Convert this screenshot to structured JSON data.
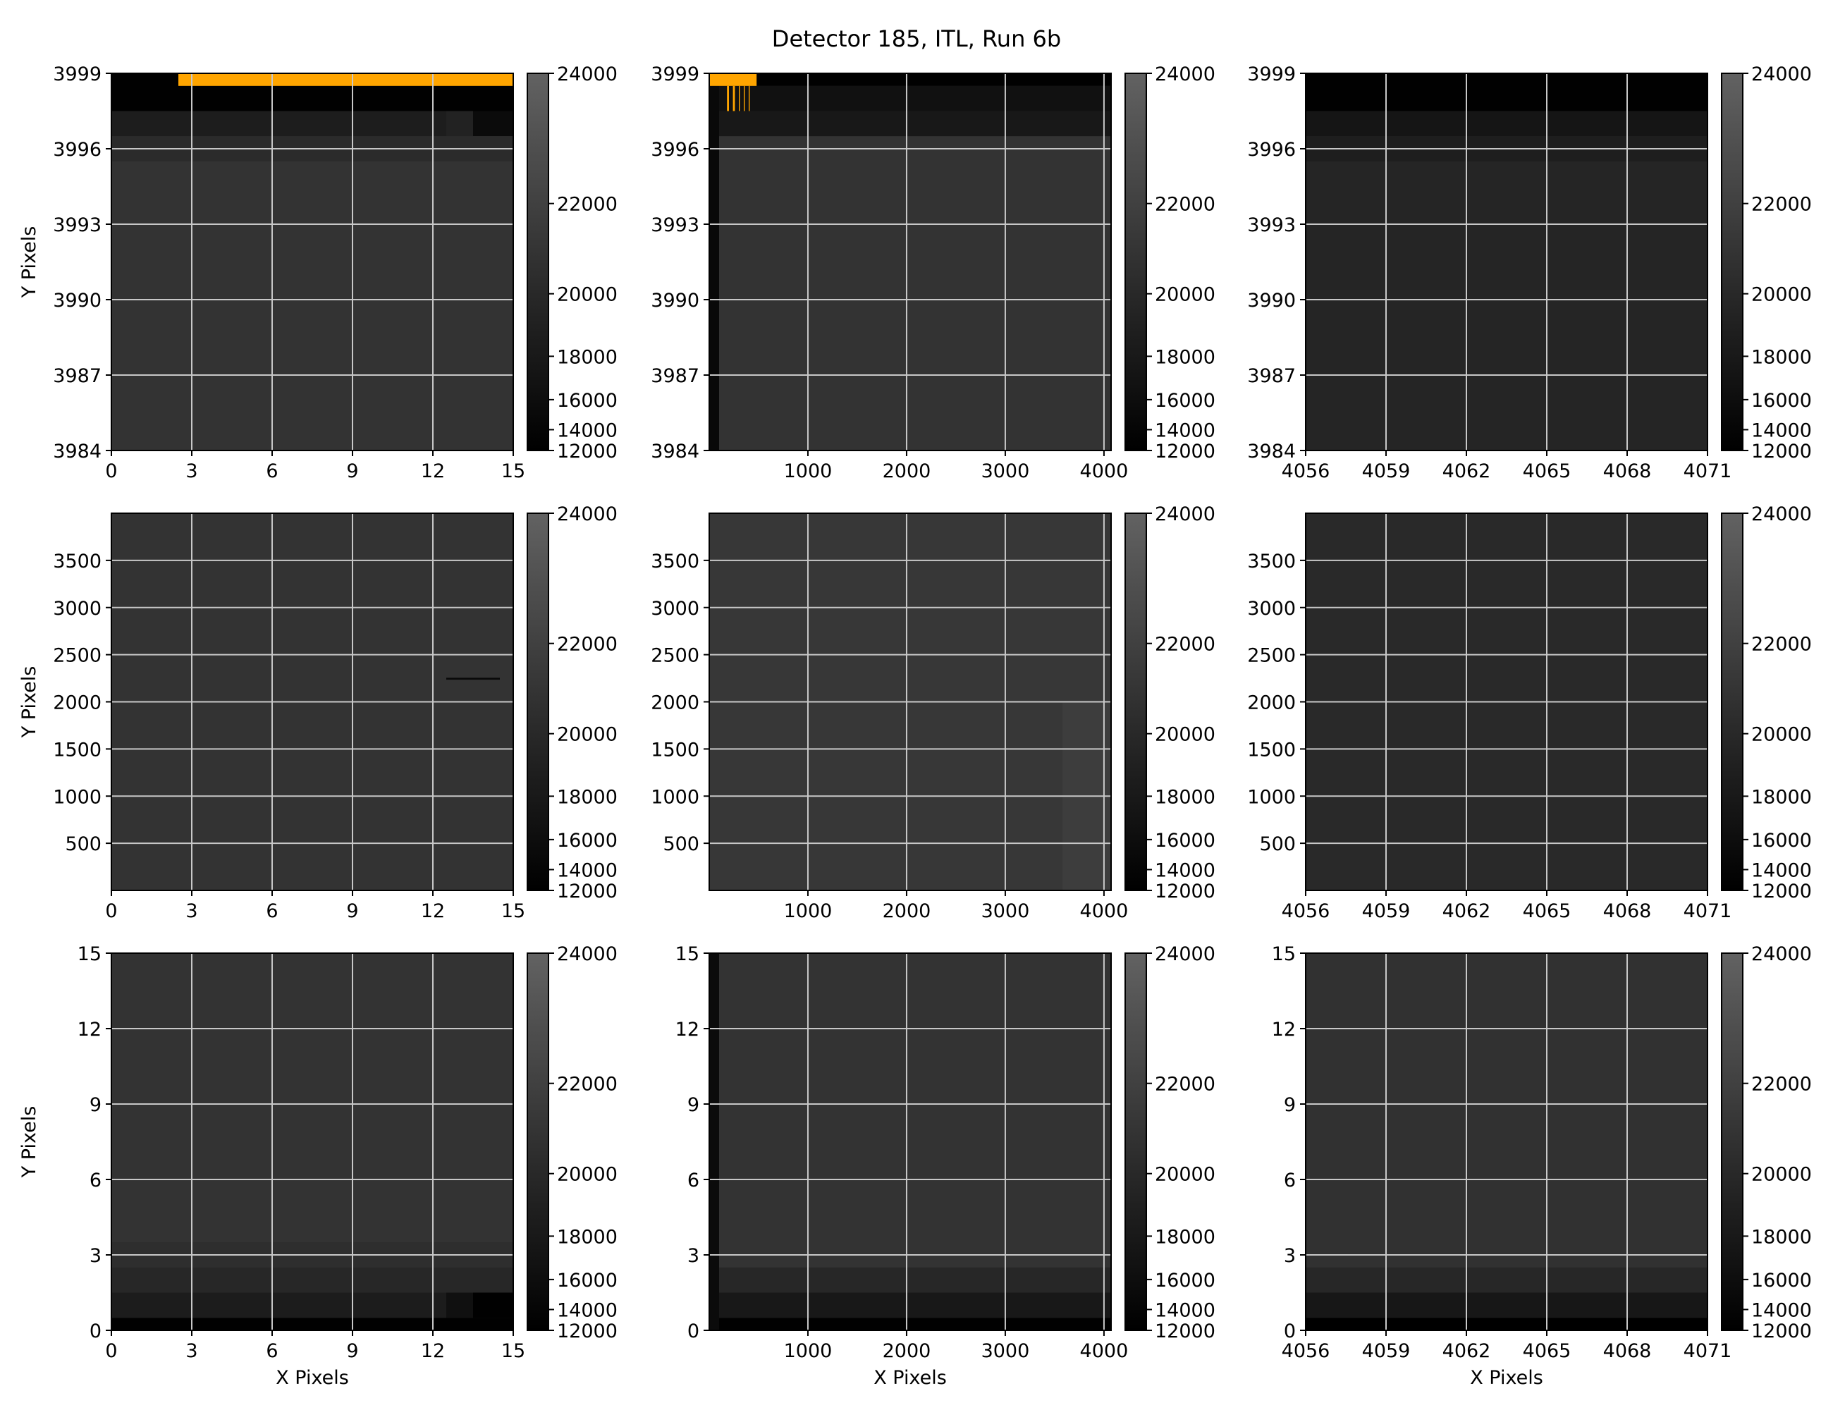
{
  "figure": {
    "title": "Detector 185, ITL, Run 6b",
    "xlabel": "X Pixels",
    "ylabel": "Y Pixels"
  },
  "colors": {
    "background": "#ffffff",
    "masked_pixels": "#ffa500",
    "grid": "#c8c8c8",
    "axes": "#000000",
    "colormap": "gray"
  },
  "chart_data": [
    {
      "type": "heatmap",
      "panel": "top-left",
      "xlabel": "",
      "ylabel": "Y Pixels",
      "xlim": [
        0,
        15
      ],
      "ylim": [
        3984,
        3999
      ],
      "xticks": [
        0,
        3,
        6,
        9,
        12,
        15
      ],
      "yticks": [
        3984,
        3987,
        3990,
        3993,
        3996,
        3999
      ],
      "xtick_labels": [
        "0",
        "3",
        "6",
        "9",
        "12",
        "15"
      ],
      "ytick_labels": [
        "3984",
        "3987",
        "3990",
        "3993",
        "3996",
        "3999"
      ],
      "background_value": 21000,
      "regions": [
        {
          "x": [
            0,
            15
          ],
          "y": [
            3997.5,
            3999
          ],
          "value": 12500
        },
        {
          "x": [
            0,
            12.5
          ],
          "y": [
            3996.5,
            3997.5
          ],
          "value": 18600
        },
        {
          "x": [
            12.5,
            13.5
          ],
          "y": [
            3996.5,
            3997.5
          ],
          "value": 19200
        },
        {
          "x": [
            13.5,
            15
          ],
          "y": [
            3996.5,
            3997.5
          ],
          "value": 15500
        },
        {
          "x": [
            0,
            15
          ],
          "y": [
            3995.5,
            3996.5
          ],
          "value": 20200
        }
      ],
      "masked": [
        {
          "x": [
            2.5,
            15
          ],
          "y": [
            3998.5,
            3999
          ]
        }
      ],
      "colorbar": {
        "min": 12000,
        "max": 24000,
        "ticks": [
          12000,
          14000,
          16000,
          18000,
          20000,
          22000,
          24000
        ],
        "tick_labels": [
          "12000",
          "14000",
          "16000",
          "18000",
          "20000",
          "22000",
          "24000"
        ],
        "scale": "non-linear"
      }
    },
    {
      "type": "heatmap",
      "panel": "top-center",
      "xlabel": "",
      "ylabel": "",
      "xlim": [
        0,
        4072
      ],
      "ylim": [
        3984,
        3999
      ],
      "xticks": [
        1000,
        2000,
        3000,
        4000
      ],
      "yticks": [
        3984,
        3987,
        3990,
        3993,
        3996,
        3999
      ],
      "xtick_labels": [
        "1000",
        "2000",
        "3000",
        "4000"
      ],
      "ytick_labels": [
        "3984",
        "3987",
        "3990",
        "3993",
        "3996",
        "3999"
      ],
      "background_value": 21000,
      "regions": [
        {
          "x": [
            0,
            4072
          ],
          "y": [
            3998.5,
            3999
          ],
          "value": 12500
        },
        {
          "x": [
            0,
            4072
          ],
          "y": [
            3997.5,
            3998.5
          ],
          "value": 16800
        },
        {
          "x": [
            0,
            4072
          ],
          "y": [
            3996.5,
            3997.5
          ],
          "value": 18000
        },
        {
          "x": [
            0,
            100
          ],
          "y": [
            3984,
            3999
          ],
          "value": 15000
        }
      ],
      "masked": [
        {
          "x": [
            0,
            480
          ],
          "y": [
            3998.5,
            3999
          ]
        },
        {
          "x": [
            180,
            200
          ],
          "y": [
            3997.5,
            3998.5
          ]
        },
        {
          "x": [
            240,
            260
          ],
          "y": [
            3997.5,
            3998.5
          ]
        },
        {
          "x": [
            300,
            310
          ],
          "y": [
            3997.5,
            3998.5
          ]
        },
        {
          "x": [
            350,
            360
          ],
          "y": [
            3997.5,
            3998.5
          ]
        },
        {
          "x": [
            400,
            410
          ],
          "y": [
            3997.5,
            3998.5
          ]
        }
      ],
      "colorbar": {
        "min": 12000,
        "max": 24000,
        "ticks": [
          12000,
          14000,
          16000,
          18000,
          20000,
          22000,
          24000
        ],
        "tick_labels": [
          "12000",
          "14000",
          "16000",
          "18000",
          "20000",
          "22000",
          "24000"
        ],
        "scale": "non-linear"
      }
    },
    {
      "type": "heatmap",
      "panel": "top-right",
      "xlabel": "",
      "ylabel": "",
      "xlim": [
        4056,
        4071
      ],
      "ylim": [
        3984,
        3999
      ],
      "xticks": [
        4056,
        4059,
        4062,
        4065,
        4068,
        4071
      ],
      "yticks": [
        3984,
        3987,
        3990,
        3993,
        3996,
        3999
      ],
      "xtick_labels": [
        "4056",
        "4059",
        "4062",
        "4065",
        "4068",
        "4071"
      ],
      "ytick_labels": [
        "3984",
        "3987",
        "3990",
        "3993",
        "3996",
        "3999"
      ],
      "background_value": 19600,
      "regions": [
        {
          "x": [
            4056,
            4071
          ],
          "y": [
            3997.5,
            3999
          ],
          "value": 12400
        },
        {
          "x": [
            4056,
            4071
          ],
          "y": [
            3996.5,
            3997.5
          ],
          "value": 17500
        },
        {
          "x": [
            4056,
            4071
          ],
          "y": [
            3995.5,
            3996.5
          ],
          "value": 18800
        }
      ],
      "masked": [],
      "colorbar": {
        "min": 12000,
        "max": 24000,
        "ticks": [
          12000,
          14000,
          16000,
          18000,
          20000,
          22000,
          24000
        ],
        "tick_labels": [
          "12000",
          "14000",
          "16000",
          "18000",
          "20000",
          "22000",
          "24000"
        ],
        "scale": "non-linear"
      }
    },
    {
      "type": "heatmap",
      "panel": "middle-left",
      "xlabel": "",
      "ylabel": "Y Pixels",
      "xlim": [
        0,
        15
      ],
      "ylim": [
        0,
        4000
      ],
      "xticks": [
        0,
        3,
        6,
        9,
        12,
        15
      ],
      "yticks": [
        500,
        1000,
        1500,
        2000,
        2500,
        3000,
        3500
      ],
      "xtick_labels": [
        "0",
        "3",
        "6",
        "9",
        "12",
        "15"
      ],
      "ytick_labels": [
        "500",
        "1000",
        "1500",
        "2000",
        "2500",
        "3000",
        "3500"
      ],
      "background_value": 21000,
      "regions": [
        {
          "x": [
            12.5,
            14.5
          ],
          "y": [
            2235,
            2255
          ],
          "value": 15000
        }
      ],
      "masked": [],
      "colorbar": {
        "min": 12000,
        "max": 24000,
        "ticks": [
          12000,
          14000,
          16000,
          18000,
          20000,
          22000,
          24000
        ],
        "tick_labels": [
          "12000",
          "14000",
          "16000",
          "18000",
          "20000",
          "22000",
          "24000"
        ],
        "scale": "non-linear"
      }
    },
    {
      "type": "heatmap",
      "panel": "middle-center",
      "xlabel": "",
      "ylabel": "",
      "xlim": [
        0,
        4072
      ],
      "ylim": [
        0,
        4000
      ],
      "xticks": [
        1000,
        2000,
        3000,
        4000
      ],
      "yticks": [
        500,
        1000,
        1500,
        2000,
        2500,
        3000,
        3500
      ],
      "xtick_labels": [
        "1000",
        "2000",
        "3000",
        "4000"
      ],
      "ytick_labels": [
        "500",
        "1000",
        "1500",
        "2000",
        "2500",
        "3000",
        "3500"
      ],
      "background_value": 21300,
      "regions": [
        {
          "x": [
            3580,
            4072
          ],
          "y": [
            0,
            2000
          ],
          "value": 21800
        }
      ],
      "masked": [],
      "colorbar": {
        "min": 12000,
        "max": 24000,
        "ticks": [
          12000,
          14000,
          16000,
          18000,
          20000,
          22000,
          24000
        ],
        "tick_labels": [
          "12000",
          "14000",
          "16000",
          "18000",
          "20000",
          "22000",
          "24000"
        ],
        "scale": "non-linear"
      }
    },
    {
      "type": "heatmap",
      "panel": "middle-right",
      "xlabel": "",
      "ylabel": "",
      "xlim": [
        4056,
        4071
      ],
      "ylim": [
        0,
        4000
      ],
      "xticks": [
        4056,
        4059,
        4062,
        4065,
        4068,
        4071
      ],
      "yticks": [
        500,
        1000,
        1500,
        2000,
        2500,
        3000,
        3500
      ],
      "xtick_labels": [
        "4056",
        "4059",
        "4062",
        "4065",
        "4068",
        "4071"
      ],
      "ytick_labels": [
        "500",
        "1000",
        "1500",
        "2000",
        "2500",
        "3000",
        "3500"
      ],
      "background_value": 20000,
      "regions": [],
      "masked": [],
      "colorbar": {
        "min": 12000,
        "max": 24000,
        "ticks": [
          12000,
          14000,
          16000,
          18000,
          20000,
          22000,
          24000
        ],
        "tick_labels": [
          "12000",
          "14000",
          "16000",
          "18000",
          "20000",
          "22000",
          "24000"
        ],
        "scale": "non-linear"
      }
    },
    {
      "type": "heatmap",
      "panel": "bottom-left",
      "xlabel": "X Pixels",
      "ylabel": "Y Pixels",
      "xlim": [
        0,
        15
      ],
      "ylim": [
        0,
        15
      ],
      "xticks": [
        0,
        3,
        6,
        9,
        12,
        15
      ],
      "yticks": [
        0,
        3,
        6,
        9,
        12,
        15
      ],
      "xtick_labels": [
        "0",
        "3",
        "6",
        "9",
        "12",
        "15"
      ],
      "ytick_labels": [
        "0",
        "3",
        "6",
        "9",
        "12",
        "15"
      ],
      "background_value": 21000,
      "regions": [
        {
          "x": [
            0,
            15
          ],
          "y": [
            0,
            0.5
          ],
          "value": 12400
        },
        {
          "x": [
            0,
            12.5
          ],
          "y": [
            0.5,
            1.5
          ],
          "value": 18500
        },
        {
          "x": [
            12.5,
            13.5
          ],
          "y": [
            0.5,
            1.5
          ],
          "value": 16500
        },
        {
          "x": [
            13.5,
            15
          ],
          "y": [
            0.5,
            1.5
          ],
          "value": 12600
        },
        {
          "x": [
            0,
            15
          ],
          "y": [
            1.5,
            2.5
          ],
          "value": 19800
        },
        {
          "x": [
            0,
            15
          ],
          "y": [
            2.5,
            3.5
          ],
          "value": 20500
        }
      ],
      "masked": [],
      "colorbar": {
        "min": 12000,
        "max": 24000,
        "ticks": [
          12000,
          14000,
          16000,
          18000,
          20000,
          22000,
          24000
        ],
        "tick_labels": [
          "12000",
          "14000",
          "16000",
          "18000",
          "20000",
          "22000",
          "24000"
        ],
        "scale": "non-linear"
      }
    },
    {
      "type": "heatmap",
      "panel": "bottom-center",
      "xlabel": "X Pixels",
      "ylabel": "",
      "xlim": [
        0,
        4072
      ],
      "ylim": [
        0,
        15
      ],
      "xticks": [
        1000,
        2000,
        3000,
        4000
      ],
      "yticks": [
        0,
        3,
        6,
        9,
        12,
        15
      ],
      "xtick_labels": [
        "1000",
        "2000",
        "3000",
        "4000"
      ],
      "ytick_labels": [
        "0",
        "3",
        "6",
        "9",
        "12",
        "15"
      ],
      "background_value": 21000,
      "regions": [
        {
          "x": [
            0,
            4072
          ],
          "y": [
            0,
            0.5
          ],
          "value": 12300
        },
        {
          "x": [
            0,
            4072
          ],
          "y": [
            0.5,
            1.5
          ],
          "value": 18000
        },
        {
          "x": [
            0,
            4072
          ],
          "y": [
            1.5,
            2.5
          ],
          "value": 19800
        },
        {
          "x": [
            0,
            100
          ],
          "y": [
            0,
            15
          ],
          "value": 15500
        }
      ],
      "masked": [],
      "colorbar": {
        "min": 12000,
        "max": 24000,
        "ticks": [
          12000,
          14000,
          16000,
          18000,
          20000,
          22000,
          24000
        ],
        "tick_labels": [
          "12000",
          "14000",
          "16000",
          "18000",
          "20000",
          "22000",
          "24000"
        ],
        "scale": "non-linear"
      }
    },
    {
      "type": "heatmap",
      "panel": "bottom-right",
      "xlabel": "X Pixels",
      "ylabel": "",
      "xlim": [
        4056,
        4071
      ],
      "ylim": [
        0,
        15
      ],
      "xticks": [
        4056,
        4059,
        4062,
        4065,
        4068,
        4071
      ],
      "yticks": [
        0,
        3,
        6,
        9,
        12,
        15
      ],
      "xtick_labels": [
        "4056",
        "4059",
        "4062",
        "4065",
        "4068",
        "4071"
      ],
      "ytick_labels": [
        "0",
        "3",
        "6",
        "9",
        "12",
        "15"
      ],
      "background_value": 20800,
      "regions": [
        {
          "x": [
            4056,
            4071
          ],
          "y": [
            0,
            0.5
          ],
          "value": 12200
        },
        {
          "x": [
            4056,
            4071
          ],
          "y": [
            0.5,
            1.5
          ],
          "value": 17800
        },
        {
          "x": [
            4056,
            4071
          ],
          "y": [
            1.5,
            2.5
          ],
          "value": 19800
        }
      ],
      "masked": [],
      "colorbar": {
        "min": 12000,
        "max": 24000,
        "ticks": [
          12000,
          14000,
          16000,
          18000,
          20000,
          22000,
          24000
        ],
        "tick_labels": [
          "12000",
          "14000",
          "16000",
          "18000",
          "20000",
          "22000",
          "24000"
        ],
        "scale": "non-linear"
      }
    }
  ]
}
